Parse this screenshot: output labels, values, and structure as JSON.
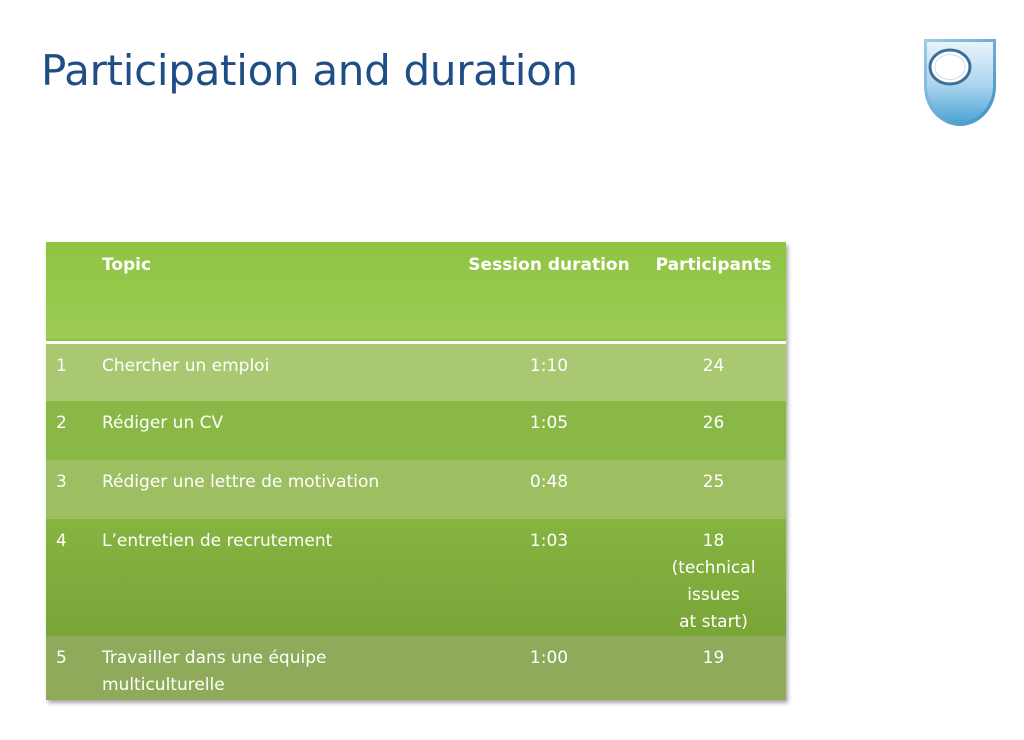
{
  "slide": {
    "title": "Participation and duration"
  },
  "table": {
    "headers": {
      "num": "",
      "topic": "Topic",
      "duration": "Session duration",
      "participants": "Participants"
    },
    "rows": [
      {
        "num": "1",
        "topic": "Chercher un emploi",
        "duration": "1:10",
        "participants": "24",
        "note1": "",
        "note2": ""
      },
      {
        "num": "2",
        "topic": "Rédiger un CV",
        "duration": "1:05",
        "participants": "26",
        "note1": "",
        "note2": ""
      },
      {
        "num": "3",
        "topic": "Rédiger une lettre de motivation",
        "duration": "0:48",
        "participants": "25",
        "note1": "",
        "note2": ""
      },
      {
        "num": "4",
        "topic": "L’entretien de recrutement",
        "duration": "1:03",
        "participants": "18",
        "note1": "(technical issues",
        "note2": "at start)"
      },
      {
        "num": "5",
        "topic": "Travailler dans une équipe multiculturelle",
        "duration": "1:00",
        "participants": "19",
        "note1": "",
        "note2": ""
      }
    ]
  },
  "colors": {
    "title": "#1f4e87",
    "header_green": "#8fc442",
    "logo_blue": "#6fb3dc"
  },
  "logo": {
    "icon": "shield-logo-icon"
  }
}
